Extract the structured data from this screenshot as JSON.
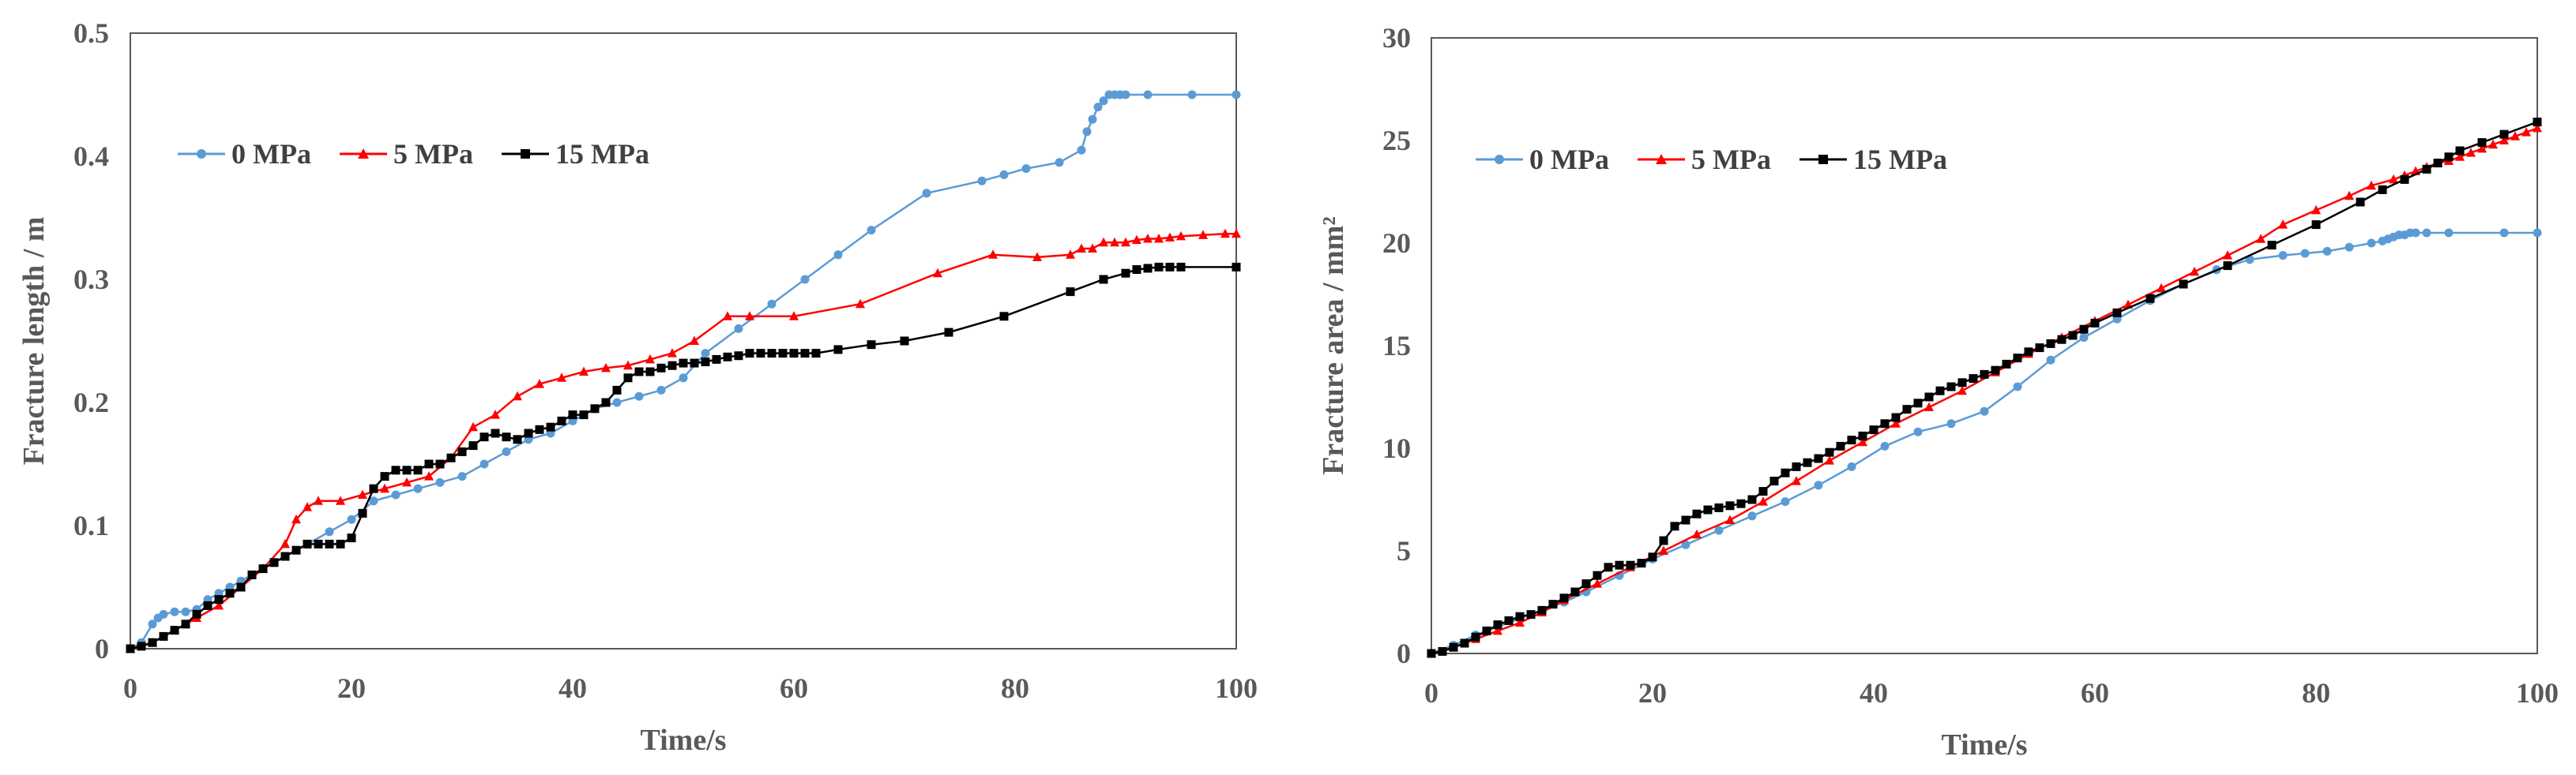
{
  "colors": {
    "s0": "#5B9BD5",
    "s5": "#FF0000",
    "s15": "#000000",
    "axis": "#595959"
  },
  "chart_data": [
    {
      "type": "line",
      "xlabel": "Time/s",
      "ylabel": "Fracture length / m",
      "xlim": [
        0,
        100
      ],
      "ylim": [
        0,
        0.5
      ],
      "xticks": [
        "0",
        "20",
        "40",
        "60",
        "80",
        "100"
      ],
      "yticks": [
        "0",
        "0.1",
        "0.2",
        "0.3",
        "0.4",
        "0.5"
      ],
      "legend": "top-left",
      "series": [
        {
          "name": "0 MPa",
          "color": "#5B9BD5",
          "marker": "circle",
          "x": [
            0,
            1,
            2,
            2.5,
            3,
            4,
            5,
            6,
            7,
            8,
            9,
            10,
            11,
            12,
            13,
            14,
            16,
            18,
            20,
            22,
            24,
            26,
            28,
            30,
            32,
            34,
            36,
            38,
            40,
            42,
            44,
            46,
            48,
            50,
            52,
            55,
            58,
            61,
            64,
            67,
            72,
            77,
            79,
            81,
            84,
            86,
            86.5,
            87,
            87.5,
            88,
            88.5,
            89,
            89.5,
            90,
            92,
            96,
            100
          ],
          "y": [
            0,
            0.005,
            0.02,
            0.025,
            0.028,
            0.03,
            0.03,
            0.032,
            0.04,
            0.045,
            0.05,
            0.055,
            0.06,
            0.065,
            0.07,
            0.075,
            0.085,
            0.095,
            0.105,
            0.12,
            0.125,
            0.13,
            0.135,
            0.14,
            0.15,
            0.16,
            0.17,
            0.175,
            0.185,
            0.195,
            0.2,
            0.205,
            0.21,
            0.22,
            0.24,
            0.26,
            0.28,
            0.3,
            0.32,
            0.34,
            0.37,
            0.38,
            0.385,
            0.39,
            0.395,
            0.405,
            0.42,
            0.43,
            0.44,
            0.445,
            0.45,
            0.45,
            0.45,
            0.45,
            0.45,
            0.45,
            0.45
          ]
        },
        {
          "name": "5 MPa",
          "color": "#FF0000",
          "marker": "triangle",
          "x": [
            0,
            2,
            4,
            6,
            8,
            10,
            12,
            14,
            15,
            16,
            17,
            19,
            21,
            23,
            25,
            27,
            29,
            31,
            33,
            35,
            37,
            39,
            41,
            43,
            45,
            47,
            49,
            51,
            54,
            56,
            60,
            66,
            73,
            78,
            82,
            85,
            86,
            87,
            88,
            89,
            90,
            91,
            92,
            93,
            94,
            95,
            97,
            99,
            100
          ],
          "y": [
            0,
            0.005,
            0.015,
            0.025,
            0.035,
            0.05,
            0.065,
            0.085,
            0.105,
            0.115,
            0.12,
            0.12,
            0.125,
            0.13,
            0.135,
            0.14,
            0.155,
            0.18,
            0.19,
            0.205,
            0.215,
            0.22,
            0.225,
            0.228,
            0.23,
            0.235,
            0.24,
            0.25,
            0.27,
            0.27,
            0.27,
            0.28,
            0.305,
            0.32,
            0.318,
            0.32,
            0.325,
            0.325,
            0.33,
            0.33,
            0.33,
            0.332,
            0.333,
            0.333,
            0.334,
            0.335,
            0.336,
            0.337,
            0.337
          ]
        },
        {
          "name": "15 MPa",
          "color": "#000000",
          "marker": "square",
          "x": [
            0,
            1,
            2,
            3,
            4,
            5,
            6,
            7,
            8,
            9,
            10,
            11,
            12,
            13,
            14,
            15,
            16,
            17,
            18,
            19,
            20,
            21,
            22,
            23,
            24,
            25,
            26,
            27,
            28,
            29,
            30,
            31,
            32,
            33,
            34,
            35,
            36,
            37,
            38,
            39,
            40,
            41,
            42,
            43,
            44,
            45,
            46,
            47,
            48,
            49,
            50,
            51,
            52,
            53,
            54,
            55,
            56,
            57,
            58,
            59,
            60,
            61,
            62,
            64,
            67,
            70,
            74,
            79,
            85,
            88,
            90,
            91,
            92,
            93,
            94,
            95,
            100
          ],
          "y": [
            0,
            0.002,
            0.005,
            0.01,
            0.015,
            0.02,
            0.028,
            0.035,
            0.04,
            0.045,
            0.05,
            0.06,
            0.065,
            0.07,
            0.075,
            0.08,
            0.085,
            0.085,
            0.085,
            0.085,
            0.09,
            0.11,
            0.13,
            0.14,
            0.145,
            0.145,
            0.145,
            0.15,
            0.15,
            0.155,
            0.16,
            0.165,
            0.172,
            0.175,
            0.172,
            0.17,
            0.175,
            0.178,
            0.18,
            0.185,
            0.19,
            0.19,
            0.195,
            0.2,
            0.21,
            0.22,
            0.225,
            0.225,
            0.228,
            0.23,
            0.232,
            0.232,
            0.233,
            0.235,
            0.237,
            0.238,
            0.24,
            0.24,
            0.24,
            0.24,
            0.24,
            0.24,
            0.24,
            0.243,
            0.247,
            0.25,
            0.257,
            0.27,
            0.29,
            0.3,
            0.305,
            0.308,
            0.309,
            0.31,
            0.31,
            0.31,
            0.31
          ]
        }
      ]
    },
    {
      "type": "line",
      "xlabel": "Time/s",
      "ylabel": "Fracture area / mm²",
      "xlim": [
        0,
        100
      ],
      "ylim": [
        0,
        30
      ],
      "xticks": [
        "0",
        "20",
        "40",
        "60",
        "80",
        "100"
      ],
      "yticks": [
        "0",
        "5",
        "10",
        "15",
        "20",
        "25",
        "30"
      ],
      "legend": "top-left",
      "series": [
        {
          "name": "0 MPa",
          "color": "#5B9BD5",
          "marker": "circle",
          "x": [
            0,
            2,
            4,
            6,
            8,
            10,
            12,
            14,
            17,
            20,
            23,
            26,
            29,
            32,
            35,
            38,
            41,
            44,
            47,
            50,
            53,
            56,
            59,
            62,
            65,
            68,
            71,
            74,
            77,
            79,
            81,
            83,
            85,
            86,
            86.5,
            87,
            87.5,
            88,
            88.5,
            89,
            90,
            92,
            97,
            100
          ],
          "y": [
            0,
            0.4,
            0.9,
            1.3,
            1.7,
            2.1,
            2.5,
            3.0,
            3.8,
            4.6,
            5.3,
            6.0,
            6.7,
            7.4,
            8.2,
            9.1,
            10.1,
            10.8,
            11.2,
            11.8,
            13.0,
            14.3,
            15.4,
            16.3,
            17.2,
            18.0,
            18.7,
            19.2,
            19.4,
            19.5,
            19.6,
            19.8,
            20.0,
            20.1,
            20.2,
            20.3,
            20.4,
            20.4,
            20.5,
            20.5,
            20.5,
            20.5,
            20.5,
            20.5
          ]
        },
        {
          "name": "5 MPa",
          "color": "#FF0000",
          "marker": "triangle",
          "x": [
            0,
            2,
            4,
            6,
            8,
            10,
            12,
            15,
            18,
            21,
            24,
            27,
            30,
            33,
            36,
            39,
            42,
            45,
            48,
            51,
            54,
            57,
            60,
            63,
            66,
            69,
            72,
            75,
            77,
            80,
            83,
            85,
            87,
            88,
            89,
            90,
            91,
            92,
            93,
            94,
            95,
            96,
            97,
            98,
            99,
            100
          ],
          "y": [
            0,
            0.3,
            0.7,
            1.1,
            1.5,
            2.0,
            2.6,
            3.4,
            4.2,
            5.0,
            5.8,
            6.5,
            7.4,
            8.4,
            9.4,
            10.3,
            11.2,
            12.0,
            12.8,
            13.7,
            14.6,
            15.4,
            16.2,
            17.0,
            17.8,
            18.6,
            19.4,
            20.2,
            20.9,
            21.6,
            22.3,
            22.8,
            23.1,
            23.3,
            23.5,
            23.7,
            23.9,
            24.0,
            24.2,
            24.4,
            24.6,
            24.8,
            25.0,
            25.2,
            25.4,
            25.6
          ]
        },
        {
          "name": "15 MPa",
          "color": "#000000",
          "marker": "square",
          "x": [
            0,
            1,
            2,
            3,
            4,
            5,
            6,
            7,
            8,
            9,
            10,
            11,
            12,
            13,
            14,
            15,
            16,
            17,
            18,
            19,
            20,
            21,
            22,
            23,
            24,
            25,
            26,
            27,
            28,
            29,
            30,
            31,
            32,
            33,
            34,
            35,
            36,
            37,
            38,
            39,
            40,
            41,
            42,
            43,
            44,
            45,
            46,
            47,
            48,
            49,
            50,
            51,
            52,
            53,
            54,
            55,
            56,
            57,
            58,
            59,
            60,
            62,
            65,
            68,
            72,
            76,
            80,
            84,
            86,
            88,
            90,
            91,
            92,
            93,
            95,
            97,
            100
          ],
          "y": [
            0,
            0.1,
            0.3,
            0.5,
            0.8,
            1.1,
            1.4,
            1.6,
            1.8,
            1.9,
            2.1,
            2.4,
            2.7,
            3.0,
            3.4,
            3.8,
            4.2,
            4.3,
            4.3,
            4.4,
            4.7,
            5.5,
            6.2,
            6.5,
            6.8,
            7.0,
            7.1,
            7.2,
            7.3,
            7.5,
            7.9,
            8.4,
            8.8,
            9.1,
            9.3,
            9.5,
            9.8,
            10.1,
            10.4,
            10.6,
            10.9,
            11.2,
            11.5,
            11.9,
            12.2,
            12.5,
            12.8,
            13.0,
            13.2,
            13.4,
            13.6,
            13.8,
            14.1,
            14.4,
            14.7,
            14.9,
            15.1,
            15.3,
            15.5,
            15.8,
            16.1,
            16.6,
            17.3,
            18.0,
            18.9,
            19.9,
            20.9,
            22.0,
            22.6,
            23.1,
            23.6,
            23.9,
            24.2,
            24.5,
            24.9,
            25.3,
            25.9
          ]
        }
      ]
    }
  ]
}
